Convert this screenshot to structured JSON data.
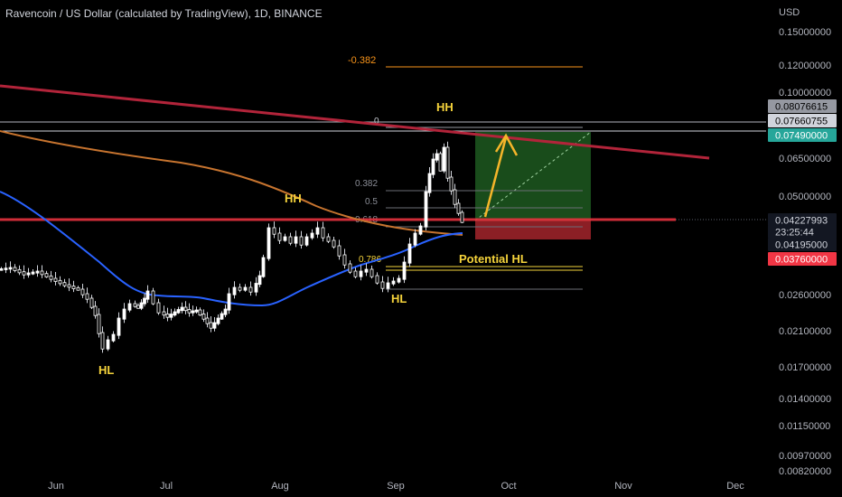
{
  "header": {
    "title": "Ravencoin / US Dollar (calculated by TradingView), 1D, BINANCE"
  },
  "axis": {
    "currency": "USD"
  },
  "chart_data": {
    "type": "candlestick",
    "symbol": "Ravencoin / US Dollar",
    "timeframe": "1D",
    "price_scale": "log",
    "y_ticks": [
      "0.15000000",
      "0.12000000",
      "0.10000000",
      "0.06500000",
      "0.05000000",
      "0.02600000",
      "0.02100000",
      "0.01700000",
      "0.01400000",
      "0.01150000",
      "0.00970000",
      "0.00820000"
    ],
    "x_ticks": [
      "Jun",
      "Jul",
      "Aug",
      "Sep",
      "Oct",
      "Nov",
      "Dec"
    ],
    "price_tags": [
      {
        "label": "0.08076615",
        "bg": "#9598a1",
        "fg": "#000000",
        "price": 0.0808
      },
      {
        "label": "0.07660755",
        "bg": "#d1d4dc",
        "fg": "#000000",
        "price": 0.0766
      },
      {
        "label": "0.07490000",
        "bg": "#26a69a",
        "fg": "#ffffff",
        "price": 0.0749
      },
      {
        "label": "0.04227993",
        "bg": "#131722",
        "fg": "#d1d4dc",
        "price": 0.04228
      },
      {
        "label": "23:25:44",
        "bg": "#131722",
        "fg": "#d1d4dc",
        "price": 0.0405
      },
      {
        "label": "0.04195000",
        "bg": "#131722",
        "fg": "#d1d4dc",
        "price": 0.0386
      },
      {
        "label": "0.03760000",
        "bg": "#f23645",
        "fg": "#ffffff",
        "price": 0.0357
      }
    ],
    "fib_levels": [
      {
        "label": "-0.382",
        "price": 0.115,
        "color": "#f7931a"
      },
      {
        "label": "0",
        "price": 0.0808,
        "color": "#9598a1"
      },
      {
        "label": "0.382",
        "price": 0.0545,
        "color": "#9598a1"
      },
      {
        "label": "0.5",
        "price": 0.0485,
        "color": "#9598a1"
      },
      {
        "label": "0.618",
        "price": 0.0425,
        "color": "#9598a1"
      },
      {
        "label": "0.786",
        "price": 0.0335,
        "color": "#f5d33b"
      }
    ],
    "annotations": [
      "HH",
      "HH",
      "HL",
      "HL",
      "Potential HL"
    ],
    "position": {
      "entry": 0.0423,
      "target": 0.0749,
      "stop": 0.0376
    },
    "colors": {
      "up": "#ffffff",
      "down": "#ffffff",
      "ma_fast": "#2962ff",
      "ma_slow": "#c7742f",
      "trend": "#b2243a",
      "support": "#e5323e",
      "arrow": "#f5b52a"
    }
  }
}
